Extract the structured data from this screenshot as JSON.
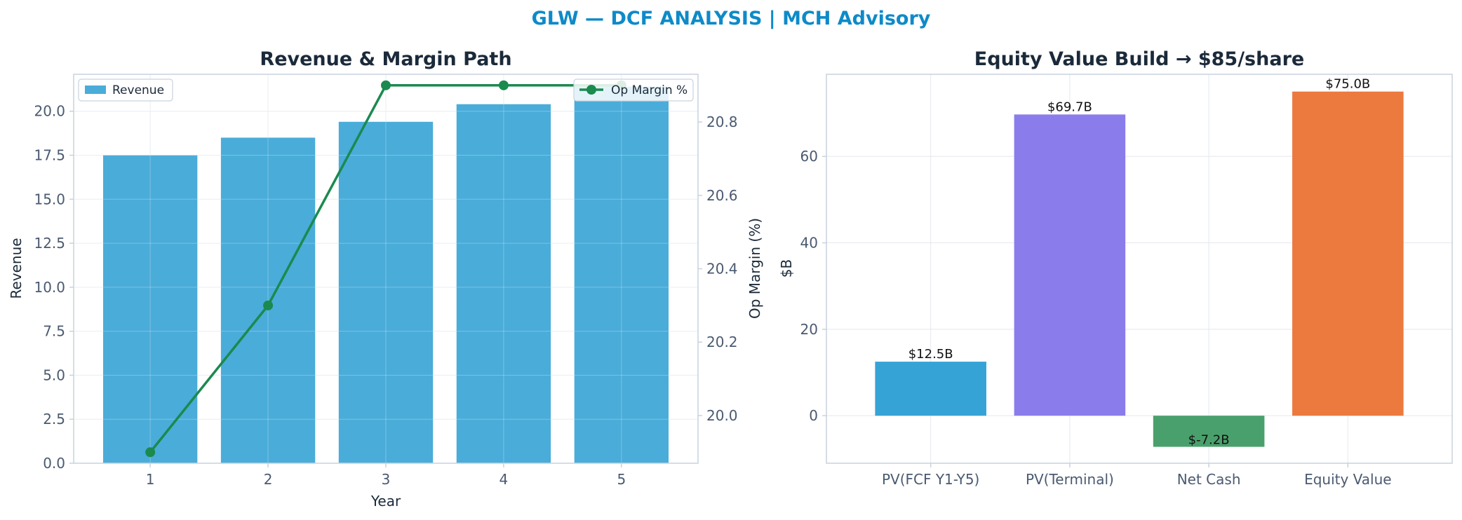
{
  "figure": {
    "suptitle": "GLW — DCF ANALYSIS | MCH Advisory"
  },
  "colors": {
    "suptitle": "#0e8ac8",
    "revenue_bar": "#4aacd9",
    "op_margin_line": "#1b8a4e",
    "bridge": [
      "#36a3d6",
      "#8a7deb",
      "#4aa06c",
      "#ec7a3e"
    ]
  },
  "chart_data": [
    {
      "type": "bar",
      "title": "Revenue & Margin Path",
      "xlabel": "Year",
      "ylabel": "Revenue",
      "y2label": "Op Margin (%)",
      "categories": [
        "1",
        "2",
        "3",
        "4",
        "5"
      ],
      "series": [
        {
          "name": "Revenue",
          "type": "bar",
          "axis": "left",
          "values": [
            17.5,
            18.5,
            19.4,
            20.4,
            21.4
          ]
        },
        {
          "name": "Op Margin %",
          "type": "line",
          "axis": "right",
          "values": [
            19.9,
            20.3,
            20.9,
            20.9,
            20.9
          ]
        }
      ],
      "ylim": [
        0,
        22.1
      ],
      "y2lim": [
        19.87,
        20.93
      ],
      "yticks": [
        "0.0",
        "2.5",
        "5.0",
        "7.5",
        "10.0",
        "12.5",
        "15.0",
        "17.5",
        "20.0"
      ],
      "y2ticks": [
        "20.0",
        "20.2",
        "20.4",
        "20.6",
        "20.8"
      ],
      "legend_left": "upper-left",
      "legend_right": "upper-right",
      "grid": true
    },
    {
      "type": "bar",
      "title": "Equity Value Build → $85/share",
      "xlabel": "",
      "ylabel": "$B",
      "categories": [
        "PV(FCF Y1-Y5)",
        "PV(Terminal)",
        "Net Cash",
        "Equity Value"
      ],
      "values": [
        12.5,
        69.7,
        -7.2,
        75.0
      ],
      "data_labels": [
        "$12.5B",
        "$69.7B",
        "$-7.2B",
        "$75.0B"
      ],
      "ylim": [
        -11,
        79
      ],
      "yticks": [
        "0",
        "20",
        "40",
        "60"
      ],
      "grid": true
    }
  ]
}
